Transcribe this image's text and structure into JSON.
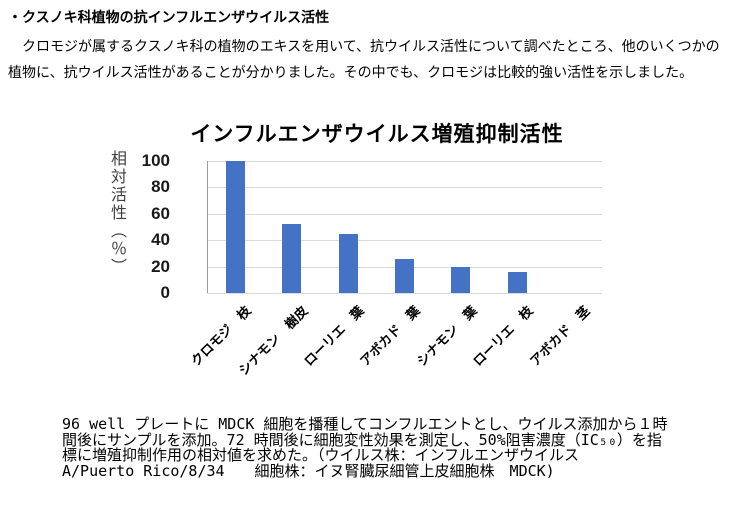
{
  "page": {
    "heading": "・クスノキ科植物の抗インフルエンザウイルス活性",
    "paragraph_lines": [
      "　クロモジが属するクスノキ科の植物のエキスを用いて、抗ウイルス活性について調べたところ、他のいくつかの",
      "植物に、抗ウイルス活性があることが分かりました。その中でも、クロモジは比較的強い活性を示しました。"
    ],
    "caption_lines": [
      "96 well プレートに MDCK 細胞を播種してコンフルエントとし、ウイルス添加から１時",
      "間後にサンプルを添加。72 時間後に細胞変性効果を測定し、50%阻害濃度（IC₅₀）を指",
      "標に増殖抑制作用の相対値を求めた。（ウイルス株：インフルエンザウイルス",
      "A/Puerto Rico/8/34　　細胞株：イヌ腎臓尿細管上皮細胞株　MDCK)"
    ]
  },
  "chart_data": {
    "type": "bar",
    "title": "インフルエンザウイルス増殖抑制活性",
    "ylabel": "相対活性（％）",
    "xlabel": "",
    "categories": [
      "クロモジ　枝",
      "シナモン　樹皮",
      "ローリエ　葉",
      "アボカド　葉",
      "シナモン　葉",
      "ローリエ　枝",
      "アボカド　茎"
    ],
    "values": [
      100,
      52,
      45,
      26,
      20,
      16,
      0
    ],
    "ylim": [
      0,
      100
    ],
    "yticks": [
      0,
      20,
      40,
      60,
      80,
      100
    ],
    "grid": true,
    "legend": false,
    "bar_color": "#4472c4",
    "gridline_color": "#d9d9d9",
    "axis_line_color": "#9b9b9b",
    "tick_label_color": "#1a1a1a",
    "axis_title_color": "#404040"
  }
}
